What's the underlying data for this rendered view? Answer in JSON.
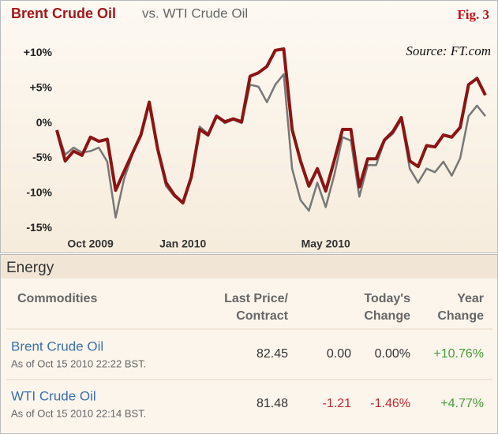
{
  "chart_data": {
    "type": "line",
    "title": "Brent Crude Oil",
    "subtitle": "vs. WTI Crude Oil",
    "annotations": [
      "Fig. 3",
      "Source: FT.com"
    ],
    "categories": [
      null,
      null,
      null,
      null,
      "Oct 2009",
      null,
      null,
      null,
      null,
      null,
      null,
      null,
      null,
      null,
      null,
      "Jan 2010",
      null,
      null,
      null,
      null,
      null,
      null,
      null,
      null,
      null,
      null,
      null,
      null,
      null,
      null,
      null,
      null,
      "May 2010",
      null,
      null,
      null,
      null,
      null,
      null,
      null,
      null,
      null,
      null,
      null,
      null,
      null,
      null,
      null,
      null,
      null,
      null,
      null
    ],
    "series": [
      {
        "name": "Brent Crude Oil",
        "color": "#8b1414",
        "values": [
          -1.0,
          -5.4,
          -4.0,
          -4.6,
          -2.0,
          -2.6,
          -2.3,
          -9.6,
          -6.9,
          -4.3,
          -1.7,
          3.0,
          -3.7,
          -8.5,
          -10.3,
          -11.4,
          -7.7,
          -0.9,
          -1.7,
          1.0,
          0.2,
          0.6,
          0.2,
          6.7,
          7.2,
          8.1,
          10.4,
          10.6,
          -0.9,
          -5.4,
          -9.0,
          -6.5,
          -9.7,
          -5.4,
          -0.9,
          -0.9,
          -9.1,
          -5.1,
          -5.1,
          -2.4,
          -1.2,
          0.8,
          -5.4,
          -6.2,
          -3.2,
          -3.4,
          -1.7,
          -2.0,
          -0.6,
          5.5,
          6.4,
          4.0
        ]
      },
      {
        "name": "WTI Crude Oil",
        "color": "#777777",
        "values": [
          -1.0,
          -4.5,
          -3.5,
          -4.2,
          -4.0,
          -3.5,
          -5.5,
          -13.5,
          -8.0,
          -4.5,
          -1.7,
          3.0,
          -4.0,
          -9.0,
          -10.5,
          -11.2,
          -7.5,
          -0.5,
          -1.5,
          1.0,
          0.0,
          0.5,
          0.0,
          5.5,
          5.2,
          3.0,
          5.5,
          7.0,
          -6.5,
          -11.0,
          -12.5,
          -8.5,
          -12.0,
          -7.5,
          -2.0,
          -2.5,
          -10.5,
          -6.0,
          -6.0,
          -2.5,
          -1.5,
          0.5,
          -6.5,
          -8.5,
          -6.5,
          -7.0,
          -5.5,
          -7.5,
          -5.0,
          1.0,
          2.5,
          1.0
        ]
      }
    ],
    "ylim": [
      -16,
      15
    ],
    "yticks": [
      {
        "value": 10,
        "label": "+10%"
      },
      {
        "value": 5,
        "label": "+5%"
      },
      {
        "value": 0,
        "label": "0%"
      },
      {
        "value": -5,
        "label": "-5%"
      },
      {
        "value": -10,
        "label": "-10%"
      },
      {
        "value": -15,
        "label": "-15%"
      }
    ],
    "grid": false
  },
  "table": {
    "title": "Energy",
    "headers": [
      [
        "Commodities"
      ],
      [
        "Last Price/",
        "Contract"
      ],
      [],
      [
        "Today's",
        "Change"
      ],
      [
        "Year",
        "Change"
      ]
    ],
    "rows": [
      {
        "name": "Brent Crude Oil",
        "asof": "As of Oct 15 2010 22:22 BST.",
        "cells": [
          "82.45",
          "0.00",
          "0.00%",
          "+10.76%"
        ],
        "colors": [
          "#333333",
          "#333333",
          "#333333",
          "#4a9a3a"
        ]
      },
      {
        "name": "WTI Crude Oil",
        "asof": "As of Oct 15 2010 22:14 BST.",
        "cells": [
          "81.48",
          "-1.21",
          "-1.46%",
          "+4.77%"
        ],
        "colors": [
          "#333333",
          "#c0262c",
          "#c0262c",
          "#4a9a3a"
        ]
      }
    ]
  }
}
